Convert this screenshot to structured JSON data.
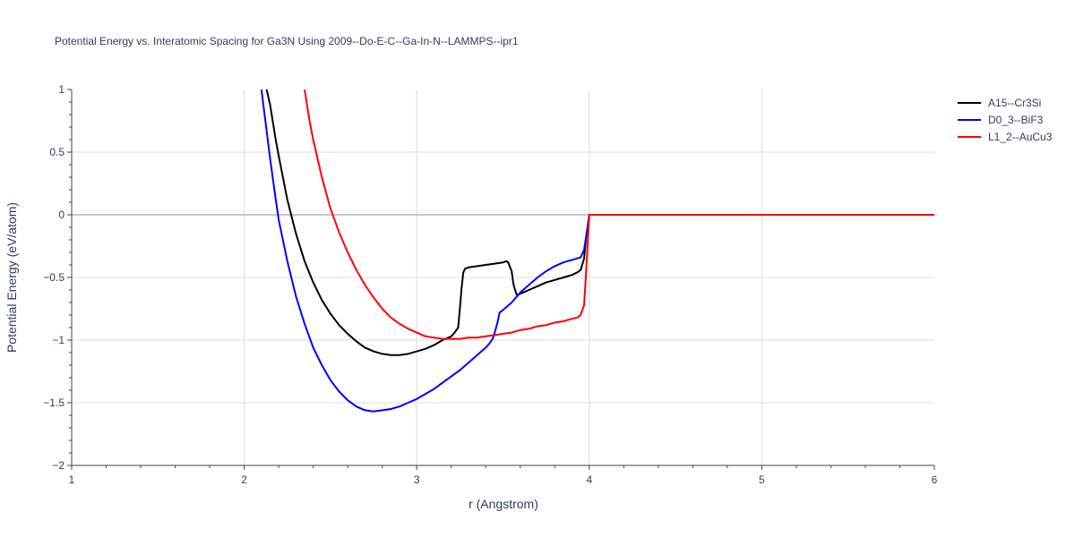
{
  "chart_data": {
    "type": "line",
    "title": "Potential Energy vs. Interatomic Spacing for Ga3N Using 2009--Do-E-C--Ga-In-N--LAMMPS--ipr1",
    "xlabel": "r (Angstrom)",
    "ylabel": "Potential Energy (eV/atom)",
    "xlim": [
      1,
      6
    ],
    "ylim": [
      -2,
      1
    ],
    "x_ticks": [
      1,
      2,
      3,
      4,
      5,
      6
    ],
    "x_tick_labels": [
      "1",
      "2",
      "3",
      "4",
      "5",
      "6"
    ],
    "y_ticks": [
      -2,
      -1.5,
      -1,
      -0.5,
      0,
      0.5,
      1
    ],
    "y_tick_labels": [
      "−2",
      "−1.5",
      "−1",
      "−0.5",
      "0",
      "0.5",
      "1"
    ],
    "grid": true,
    "legend_position": "top-right",
    "series": [
      {
        "name": "A15--Cr3Si",
        "color": "#000000",
        "points": [
          [
            2.13,
            1.0
          ],
          [
            2.15,
            0.88
          ],
          [
            2.18,
            0.62
          ],
          [
            2.2,
            0.47
          ],
          [
            2.25,
            0.12
          ],
          [
            2.3,
            -0.15
          ],
          [
            2.35,
            -0.37
          ],
          [
            2.4,
            -0.54
          ],
          [
            2.45,
            -0.68
          ],
          [
            2.5,
            -0.79
          ],
          [
            2.55,
            -0.88
          ],
          [
            2.6,
            -0.95
          ],
          [
            2.65,
            -1.01
          ],
          [
            2.7,
            -1.06
          ],
          [
            2.75,
            -1.09
          ],
          [
            2.8,
            -1.11
          ],
          [
            2.85,
            -1.12
          ],
          [
            2.9,
            -1.12
          ],
          [
            2.95,
            -1.11
          ],
          [
            3.0,
            -1.09
          ],
          [
            3.05,
            -1.07
          ],
          [
            3.1,
            -1.04
          ],
          [
            3.15,
            -1.0
          ],
          [
            3.2,
            -0.97
          ],
          [
            3.22,
            -0.94
          ],
          [
            3.24,
            -0.9
          ],
          [
            3.25,
            -0.75
          ],
          [
            3.26,
            -0.58
          ],
          [
            3.27,
            -0.46
          ],
          [
            3.28,
            -0.43
          ],
          [
            3.3,
            -0.42
          ],
          [
            3.35,
            -0.41
          ],
          [
            3.4,
            -0.4
          ],
          [
            3.45,
            -0.39
          ],
          [
            3.5,
            -0.38
          ],
          [
            3.52,
            -0.37
          ],
          [
            3.53,
            -0.38
          ],
          [
            3.55,
            -0.45
          ],
          [
            3.56,
            -0.55
          ],
          [
            3.57,
            -0.6
          ],
          [
            3.58,
            -0.64
          ],
          [
            3.6,
            -0.63
          ],
          [
            3.65,
            -0.6
          ],
          [
            3.7,
            -0.57
          ],
          [
            3.75,
            -0.54
          ],
          [
            3.8,
            -0.52
          ],
          [
            3.85,
            -0.5
          ],
          [
            3.9,
            -0.48
          ],
          [
            3.93,
            -0.46
          ],
          [
            3.95,
            -0.44
          ],
          [
            3.97,
            -0.35
          ],
          [
            3.98,
            -0.2
          ],
          [
            4.0,
            0.0
          ],
          [
            6.0,
            0.0
          ]
        ]
      },
      {
        "name": "D0_3--BiF3",
        "color": "#0000ff",
        "points": [
          [
            2.1,
            1.0
          ],
          [
            2.12,
            0.78
          ],
          [
            2.15,
            0.45
          ],
          [
            2.18,
            0.15
          ],
          [
            2.2,
            -0.04
          ],
          [
            2.25,
            -0.37
          ],
          [
            2.3,
            -0.65
          ],
          [
            2.35,
            -0.87
          ],
          [
            2.4,
            -1.06
          ],
          [
            2.45,
            -1.2
          ],
          [
            2.5,
            -1.32
          ],
          [
            2.55,
            -1.41
          ],
          [
            2.6,
            -1.48
          ],
          [
            2.65,
            -1.53
          ],
          [
            2.7,
            -1.56
          ],
          [
            2.75,
            -1.57
          ],
          [
            2.8,
            -1.56
          ],
          [
            2.85,
            -1.55
          ],
          [
            2.9,
            -1.53
          ],
          [
            2.95,
            -1.5
          ],
          [
            3.0,
            -1.47
          ],
          [
            3.05,
            -1.43
          ],
          [
            3.1,
            -1.39
          ],
          [
            3.15,
            -1.34
          ],
          [
            3.2,
            -1.29
          ],
          [
            3.25,
            -1.24
          ],
          [
            3.3,
            -1.18
          ],
          [
            3.35,
            -1.12
          ],
          [
            3.4,
            -1.06
          ],
          [
            3.42,
            -1.03
          ],
          [
            3.44,
            -0.99
          ],
          [
            3.45,
            -0.95
          ],
          [
            3.47,
            -0.85
          ],
          [
            3.48,
            -0.78
          ],
          [
            3.5,
            -0.76
          ],
          [
            3.55,
            -0.7
          ],
          [
            3.6,
            -0.62
          ],
          [
            3.65,
            -0.56
          ],
          [
            3.7,
            -0.5
          ],
          [
            3.75,
            -0.45
          ],
          [
            3.8,
            -0.41
          ],
          [
            3.85,
            -0.38
          ],
          [
            3.9,
            -0.36
          ],
          [
            3.95,
            -0.34
          ],
          [
            3.97,
            -0.28
          ],
          [
            3.99,
            -0.1
          ],
          [
            4.0,
            0.0
          ],
          [
            6.0,
            0.0
          ]
        ]
      },
      {
        "name": "L1_2--AuCu3",
        "color": "#ff0000",
        "points": [
          [
            2.35,
            1.0
          ],
          [
            2.38,
            0.74
          ],
          [
            2.4,
            0.6
          ],
          [
            2.45,
            0.3
          ],
          [
            2.5,
            0.05
          ],
          [
            2.55,
            -0.14
          ],
          [
            2.6,
            -0.3
          ],
          [
            2.65,
            -0.44
          ],
          [
            2.7,
            -0.56
          ],
          [
            2.75,
            -0.66
          ],
          [
            2.8,
            -0.75
          ],
          [
            2.85,
            -0.82
          ],
          [
            2.9,
            -0.87
          ],
          [
            2.95,
            -0.91
          ],
          [
            3.0,
            -0.94
          ],
          [
            3.05,
            -0.97
          ],
          [
            3.1,
            -0.98
          ],
          [
            3.15,
            -0.99
          ],
          [
            3.2,
            -0.99
          ],
          [
            3.25,
            -0.99
          ],
          [
            3.3,
            -0.98
          ],
          [
            3.35,
            -0.98
          ],
          [
            3.4,
            -0.97
          ],
          [
            3.45,
            -0.96
          ],
          [
            3.5,
            -0.95
          ],
          [
            3.55,
            -0.94
          ],
          [
            3.6,
            -0.92
          ],
          [
            3.65,
            -0.91
          ],
          [
            3.7,
            -0.89
          ],
          [
            3.75,
            -0.88
          ],
          [
            3.8,
            -0.86
          ],
          [
            3.85,
            -0.85
          ],
          [
            3.9,
            -0.83
          ],
          [
            3.93,
            -0.82
          ],
          [
            3.95,
            -0.8
          ],
          [
            3.97,
            -0.72
          ],
          [
            3.98,
            -0.5
          ],
          [
            3.99,
            -0.25
          ],
          [
            4.0,
            0.0
          ],
          [
            6.0,
            0.0
          ]
        ]
      }
    ]
  }
}
